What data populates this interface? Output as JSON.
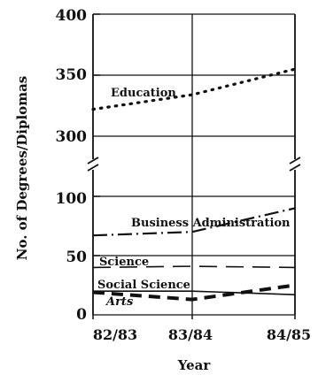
{
  "chart_data": {
    "type": "line",
    "xlabel": "Year",
    "ylabel": "No. of Degrees/Diplomas",
    "categories": [
      "82/83",
      "83/84",
      "84/85"
    ],
    "y_axis_break": true,
    "upper_panel": {
      "ylim": [
        300,
        400
      ],
      "ticks": [
        "300",
        "350",
        "400"
      ]
    },
    "lower_panel": {
      "ylim": [
        0,
        100
      ],
      "ticks": [
        "0",
        "50",
        "100"
      ]
    },
    "grid": "horizontal and vertical",
    "series": [
      {
        "name": "Education",
        "style": "dotted",
        "values": [
          322,
          334,
          355
        ]
      },
      {
        "name": "Business Administration",
        "style": "dash-dot",
        "values": [
          67,
          70,
          90
        ]
      },
      {
        "name": "Science",
        "style": "long-dash",
        "values": [
          40,
          41,
          40
        ]
      },
      {
        "name": "Social Science",
        "style": "solid",
        "values": [
          20,
          20,
          17
        ]
      },
      {
        "name": "Arts",
        "style": "heavy-dash",
        "values": [
          19,
          13,
          25
        ]
      }
    ]
  }
}
